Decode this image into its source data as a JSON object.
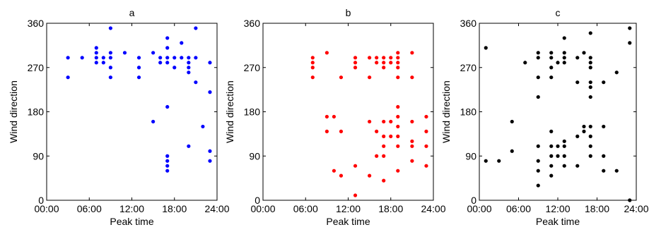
{
  "chart_data": [
    {
      "type": "scatter",
      "title": "a",
      "xlabel": "Peak time",
      "ylabel": "Wind direction",
      "xlim": [
        0,
        24
      ],
      "ylim": [
        0,
        360
      ],
      "xticks": [
        "00:00",
        "06:00",
        "12:00",
        "18:00",
        "24:00"
      ],
      "yticks": [
        "0",
        "90",
        "180",
        "270",
        "360"
      ],
      "grid": false,
      "color": "#0000ff",
      "points": [
        {
          "x": 3,
          "y": 290
        },
        {
          "x": 3,
          "y": 250
        },
        {
          "x": 5,
          "y": 290
        },
        {
          "x": 7,
          "y": 310
        },
        {
          "x": 7,
          "y": 300
        },
        {
          "x": 7,
          "y": 290
        },
        {
          "x": 7,
          "y": 280
        },
        {
          "x": 8,
          "y": 290
        },
        {
          "x": 8,
          "y": 280
        },
        {
          "x": 9,
          "y": 350
        },
        {
          "x": 9,
          "y": 300
        },
        {
          "x": 9,
          "y": 290
        },
        {
          "x": 9,
          "y": 270
        },
        {
          "x": 9,
          "y": 250
        },
        {
          "x": 11,
          "y": 300
        },
        {
          "x": 13,
          "y": 290
        },
        {
          "x": 13,
          "y": 270
        },
        {
          "x": 13,
          "y": 250
        },
        {
          "x": 15,
          "y": 300
        },
        {
          "x": 15,
          "y": 160
        },
        {
          "x": 16,
          "y": 280
        },
        {
          "x": 16,
          "y": 290
        },
        {
          "x": 17,
          "y": 330
        },
        {
          "x": 17,
          "y": 310
        },
        {
          "x": 17,
          "y": 290
        },
        {
          "x": 17,
          "y": 280
        },
        {
          "x": 17,
          "y": 190
        },
        {
          "x": 17,
          "y": 90
        },
        {
          "x": 17,
          "y": 80
        },
        {
          "x": 17,
          "y": 70
        },
        {
          "x": 17,
          "y": 60
        },
        {
          "x": 18,
          "y": 290
        },
        {
          "x": 18,
          "y": 270
        },
        {
          "x": 19,
          "y": 320
        },
        {
          "x": 19,
          "y": 290
        },
        {
          "x": 20,
          "y": 290
        },
        {
          "x": 20,
          "y": 280
        },
        {
          "x": 20,
          "y": 270
        },
        {
          "x": 20,
          "y": 260
        },
        {
          "x": 20,
          "y": 110
        },
        {
          "x": 21,
          "y": 350
        },
        {
          "x": 21,
          "y": 290
        },
        {
          "x": 21,
          "y": 240
        },
        {
          "x": 22,
          "y": 150
        },
        {
          "x": 23,
          "y": 280
        },
        {
          "x": 23,
          "y": 220
        },
        {
          "x": 23,
          "y": 100
        },
        {
          "x": 23,
          "y": 80
        }
      ]
    },
    {
      "type": "scatter",
      "title": "b",
      "xlabel": "Peak time",
      "ylabel": "Wind direction",
      "xlim": [
        0,
        24
      ],
      "ylim": [
        0,
        360
      ],
      "xticks": [
        "00:00",
        "06:00",
        "12:00",
        "18:00",
        "24:00"
      ],
      "yticks": [
        "0",
        "90",
        "180",
        "270",
        "360"
      ],
      "grid": false,
      "color": "#ff0000",
      "points": [
        {
          "x": 7,
          "y": 290
        },
        {
          "x": 7,
          "y": 280
        },
        {
          "x": 7,
          "y": 270
        },
        {
          "x": 7,
          "y": 250
        },
        {
          "x": 9,
          "y": 300
        },
        {
          "x": 9,
          "y": 170
        },
        {
          "x": 9,
          "y": 140
        },
        {
          "x": 10,
          "y": 170
        },
        {
          "x": 10,
          "y": 60
        },
        {
          "x": 11,
          "y": 250
        },
        {
          "x": 11,
          "y": 140
        },
        {
          "x": 11,
          "y": 50
        },
        {
          "x": 13,
          "y": 290
        },
        {
          "x": 13,
          "y": 280
        },
        {
          "x": 13,
          "y": 270
        },
        {
          "x": 13,
          "y": 70
        },
        {
          "x": 13,
          "y": 10
        },
        {
          "x": 15,
          "y": 290
        },
        {
          "x": 15,
          "y": 250
        },
        {
          "x": 15,
          "y": 160
        },
        {
          "x": 15,
          "y": 50
        },
        {
          "x": 16,
          "y": 290
        },
        {
          "x": 16,
          "y": 280
        },
        {
          "x": 16,
          "y": 140
        },
        {
          "x": 16,
          "y": 90
        },
        {
          "x": 17,
          "y": 290
        },
        {
          "x": 17,
          "y": 280
        },
        {
          "x": 17,
          "y": 270
        },
        {
          "x": 17,
          "y": 160
        },
        {
          "x": 17,
          "y": 130
        },
        {
          "x": 17,
          "y": 110
        },
        {
          "x": 17,
          "y": 90
        },
        {
          "x": 17,
          "y": 40
        },
        {
          "x": 18,
          "y": 290
        },
        {
          "x": 18,
          "y": 280
        },
        {
          "x": 18,
          "y": 160
        },
        {
          "x": 18,
          "y": 130
        },
        {
          "x": 19,
          "y": 300
        },
        {
          "x": 19,
          "y": 290
        },
        {
          "x": 19,
          "y": 280
        },
        {
          "x": 19,
          "y": 270
        },
        {
          "x": 19,
          "y": 250
        },
        {
          "x": 19,
          "y": 190
        },
        {
          "x": 19,
          "y": 170
        },
        {
          "x": 19,
          "y": 150
        },
        {
          "x": 19,
          "y": 130
        },
        {
          "x": 19,
          "y": 110
        },
        {
          "x": 19,
          "y": 60
        },
        {
          "x": 21,
          "y": 300
        },
        {
          "x": 21,
          "y": 250
        },
        {
          "x": 21,
          "y": 160
        },
        {
          "x": 21,
          "y": 120
        },
        {
          "x": 21,
          "y": 110
        },
        {
          "x": 21,
          "y": 80
        },
        {
          "x": 23,
          "y": 170
        },
        {
          "x": 23,
          "y": 140
        },
        {
          "x": 23,
          "y": 110
        },
        {
          "x": 23,
          "y": 70
        }
      ]
    },
    {
      "type": "scatter",
      "title": "c",
      "xlabel": "Peak time",
      "ylabel": "Wind direction",
      "xlim": [
        0,
        24
      ],
      "ylim": [
        0,
        360
      ],
      "xticks": [
        "00:00",
        "06:00",
        "12:00",
        "18:00",
        "24:00"
      ],
      "yticks": [
        "0",
        "90",
        "180",
        "270",
        "360"
      ],
      "grid": false,
      "color": "#000000",
      "points": [
        {
          "x": 1,
          "y": 310
        },
        {
          "x": 1,
          "y": 80
        },
        {
          "x": 3,
          "y": 80
        },
        {
          "x": 5,
          "y": 160
        },
        {
          "x": 5,
          "y": 100
        },
        {
          "x": 7,
          "y": 280
        },
        {
          "x": 9,
          "y": 300
        },
        {
          "x": 9,
          "y": 290
        },
        {
          "x": 9,
          "y": 250
        },
        {
          "x": 9,
          "y": 210
        },
        {
          "x": 9,
          "y": 110
        },
        {
          "x": 9,
          "y": 80
        },
        {
          "x": 9,
          "y": 60
        },
        {
          "x": 9,
          "y": 30
        },
        {
          "x": 11,
          "y": 300
        },
        {
          "x": 11,
          "y": 290
        },
        {
          "x": 11,
          "y": 270
        },
        {
          "x": 11,
          "y": 250
        },
        {
          "x": 11,
          "y": 140
        },
        {
          "x": 11,
          "y": 110
        },
        {
          "x": 11,
          "y": 90
        },
        {
          "x": 11,
          "y": 70
        },
        {
          "x": 11,
          "y": 50
        },
        {
          "x": 12,
          "y": 280
        },
        {
          "x": 12,
          "y": 110
        },
        {
          "x": 12,
          "y": 90
        },
        {
          "x": 13,
          "y": 330
        },
        {
          "x": 13,
          "y": 300
        },
        {
          "x": 13,
          "y": 290
        },
        {
          "x": 13,
          "y": 280
        },
        {
          "x": 13,
          "y": 120
        },
        {
          "x": 13,
          "y": 110
        },
        {
          "x": 13,
          "y": 90
        },
        {
          "x": 13,
          "y": 70
        },
        {
          "x": 15,
          "y": 290
        },
        {
          "x": 15,
          "y": 240
        },
        {
          "x": 15,
          "y": 130
        },
        {
          "x": 15,
          "y": 70
        },
        {
          "x": 16,
          "y": 300
        },
        {
          "x": 16,
          "y": 150
        },
        {
          "x": 16,
          "y": 140
        },
        {
          "x": 17,
          "y": 340
        },
        {
          "x": 17,
          "y": 290
        },
        {
          "x": 17,
          "y": 280
        },
        {
          "x": 17,
          "y": 270
        },
        {
          "x": 17,
          "y": 240
        },
        {
          "x": 17,
          "y": 230
        },
        {
          "x": 17,
          "y": 210
        },
        {
          "x": 17,
          "y": 150
        },
        {
          "x": 17,
          "y": 130
        },
        {
          "x": 17,
          "y": 110
        },
        {
          "x": 17,
          "y": 90
        },
        {
          "x": 19,
          "y": 240
        },
        {
          "x": 19,
          "y": 150
        },
        {
          "x": 19,
          "y": 90
        },
        {
          "x": 19,
          "y": 60
        },
        {
          "x": 21,
          "y": 260
        },
        {
          "x": 21,
          "y": 60
        },
        {
          "x": 23,
          "y": 350
        },
        {
          "x": 23,
          "y": 320
        },
        {
          "x": 23,
          "y": 0
        }
      ]
    }
  ]
}
